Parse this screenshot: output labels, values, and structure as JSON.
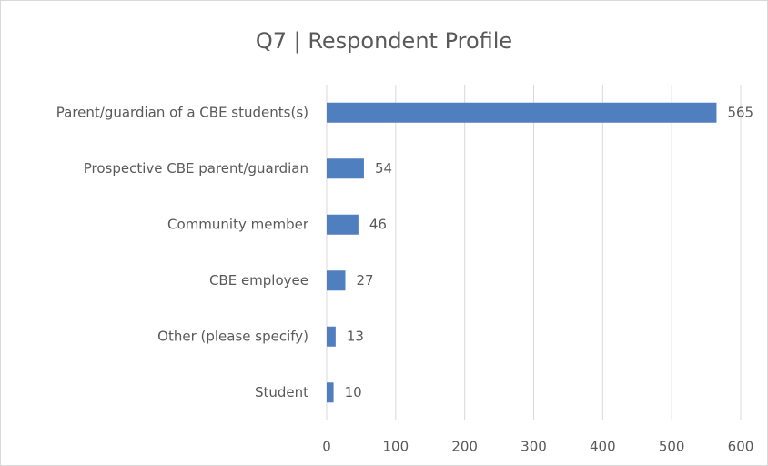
{
  "chart_data": {
    "type": "bar",
    "orientation": "horizontal",
    "title": "Q7 | Respondent Profile",
    "categories": [
      "Parent/guardian of a CBE students(s)",
      "Prospective CBE parent/guardian",
      "Community member",
      "CBE employee",
      "Other (please specify)",
      "Student"
    ],
    "values": [
      565,
      54,
      46,
      27,
      13,
      10
    ],
    "color": "#4f7fbf",
    "xlim": [
      0,
      600
    ],
    "xticks": [
      0,
      100,
      200,
      300,
      400,
      500,
      600
    ],
    "grid": true
  }
}
